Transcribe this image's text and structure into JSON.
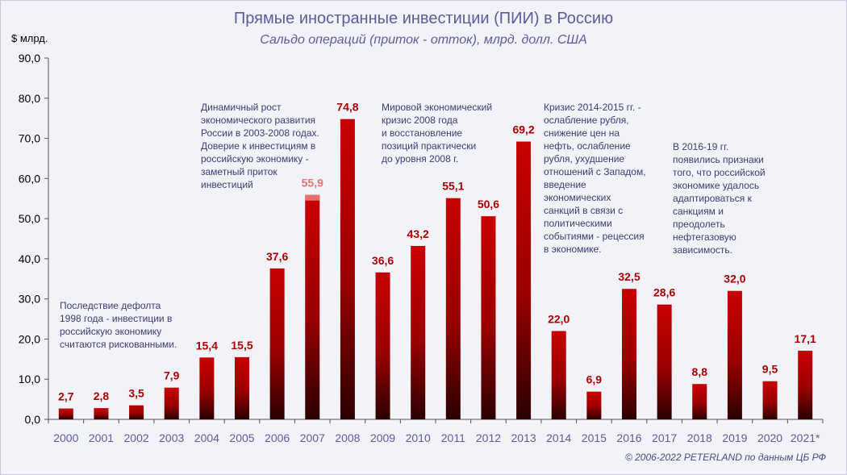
{
  "title": "Прямые иностранные инвестиции (ПИИ) в Россию",
  "subtitle": "Сальдо операций (приток - отток), млрд. долл. США",
  "unit_label": "$ млрд.",
  "copyright": "© 2006-2022 PETERLAND по данным ЦБ РФ",
  "annotations": [
    "Последствие  дефолта\n1998 года - инвестиции в\nроссийскую экономику\nсчитаются рискованными.",
    "Динамичный рост\nэкономического развития\nРоссии в 2003-2008 годах.\nДоверие к инвестициям в\nроссийскую экономику -\nзаметный приток\nинвестиций",
    "Мировой экономический\nкризис 2008 года\nи восстановление\nпозиций практически\nдо уровня 2008 г.",
    "Кризис 2014-2015 гг. -\nослабление рубля,\nснижение цен на\nнефть, ослабление\nрубля,  ухудшение\nотношений с Западом,\nвведение\nэкономических\nсанкций  в связи с\nполитическими\nсобытиями - рецессия\nв экономике.",
    "В 2016-19 гг.\nпоявились признаки\nтого, что российской\nэкономике удалось\nадаптироваться к\nсанкциям и\nпреодолеть\nнефтегазовую\nзависимость."
  ],
  "chart_data": {
    "type": "bar",
    "categories": [
      "2000",
      "2001",
      "2002",
      "2003",
      "2004",
      "2005",
      "2006",
      "2007",
      "2008",
      "2009",
      "2010",
      "2011",
      "2012",
      "2013",
      "2014",
      "2015",
      "2016",
      "2017",
      "2018",
      "2019",
      "2020",
      "2021*"
    ],
    "values": [
      2.7,
      2.8,
      3.5,
      7.9,
      15.4,
      15.5,
      37.6,
      55.9,
      74.8,
      36.6,
      43.2,
      55.1,
      50.6,
      69.2,
      22.0,
      6.9,
      32.5,
      28.6,
      8.8,
      32.0,
      9.5,
      17.1
    ],
    "value_labels": [
      "2,7",
      "2,8",
      "3,5",
      "7,9",
      "15,4",
      "15,5",
      "37,6",
      "55,9",
      "74,8",
      "36,6",
      "43,2",
      "55,1",
      "50,6",
      "69,2",
      "22,0",
      "6,9",
      "32,5",
      "28,6",
      "8,8",
      "32,0",
      "9,5",
      "17,1"
    ],
    "highlight_index": 7,
    "y_ticks": [
      0,
      10,
      20,
      30,
      40,
      50,
      60,
      70,
      80,
      90
    ],
    "y_tick_labels": [
      "0,0",
      "10,0",
      "20,0",
      "30,0",
      "40,0",
      "50,0",
      "60,0",
      "70,0",
      "80,0",
      "90,0"
    ],
    "ylim": [
      0,
      90
    ],
    "grid": false,
    "colors": {
      "bar_top": "#c80000",
      "bar_bottom": "#2a0000",
      "label": "#aa0000",
      "label_highlight": "#ee7070",
      "highlight_cap": "#f08080"
    }
  }
}
